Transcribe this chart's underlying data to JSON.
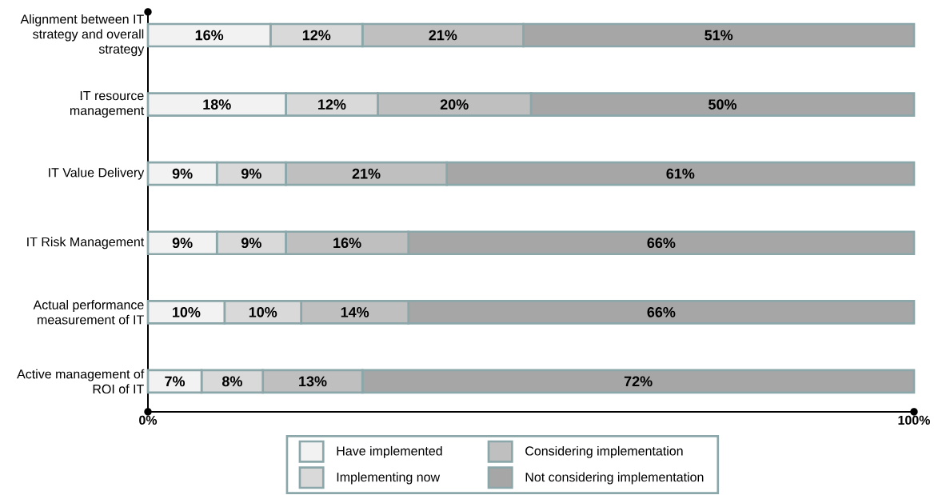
{
  "chart_data": {
    "type": "bar",
    "orientation": "horizontal",
    "stacked": true,
    "categories": [
      "Alignment between IT strategy and overall strategy",
      "IT resource management",
      "IT Value Delivery",
      "IT Risk Management",
      "Actual performance measurement of IT",
      "Active management of ROI of IT"
    ],
    "series": [
      {
        "name": "Have implemented",
        "color": "#f2f2f2",
        "values": [
          16,
          18,
          9,
          9,
          10,
          7
        ],
        "value_labels": [
          "16%",
          "18%",
          "9%",
          "9%",
          "10%",
          "7%"
        ]
      },
      {
        "name": "Implementing now",
        "color": "#d9d9d9",
        "values": [
          12,
          12,
          9,
          9,
          10,
          8
        ],
        "value_labels": [
          "12%",
          "12%",
          "9%",
          "9%",
          "10%",
          "8%"
        ]
      },
      {
        "name": "Considering implementation",
        "color": "#bfbfbf",
        "values": [
          21,
          20,
          21,
          16,
          14,
          13
        ],
        "value_labels": [
          "21%",
          "20%",
          "21%",
          "16%",
          "14%",
          "13%"
        ]
      },
      {
        "name": "Not considering implementation",
        "color": "#a6a6a6",
        "values": [
          51,
          50,
          61,
          66,
          66,
          72
        ],
        "value_labels": [
          "51%",
          "50%",
          "61%",
          "66%",
          "66%",
          "72%"
        ]
      }
    ],
    "xlim": [
      0,
      100
    ],
    "xticks": [
      {
        "value": 0,
        "label": "0%"
      },
      {
        "value": 100,
        "label": "100%"
      }
    ],
    "legend": "bottom"
  }
}
